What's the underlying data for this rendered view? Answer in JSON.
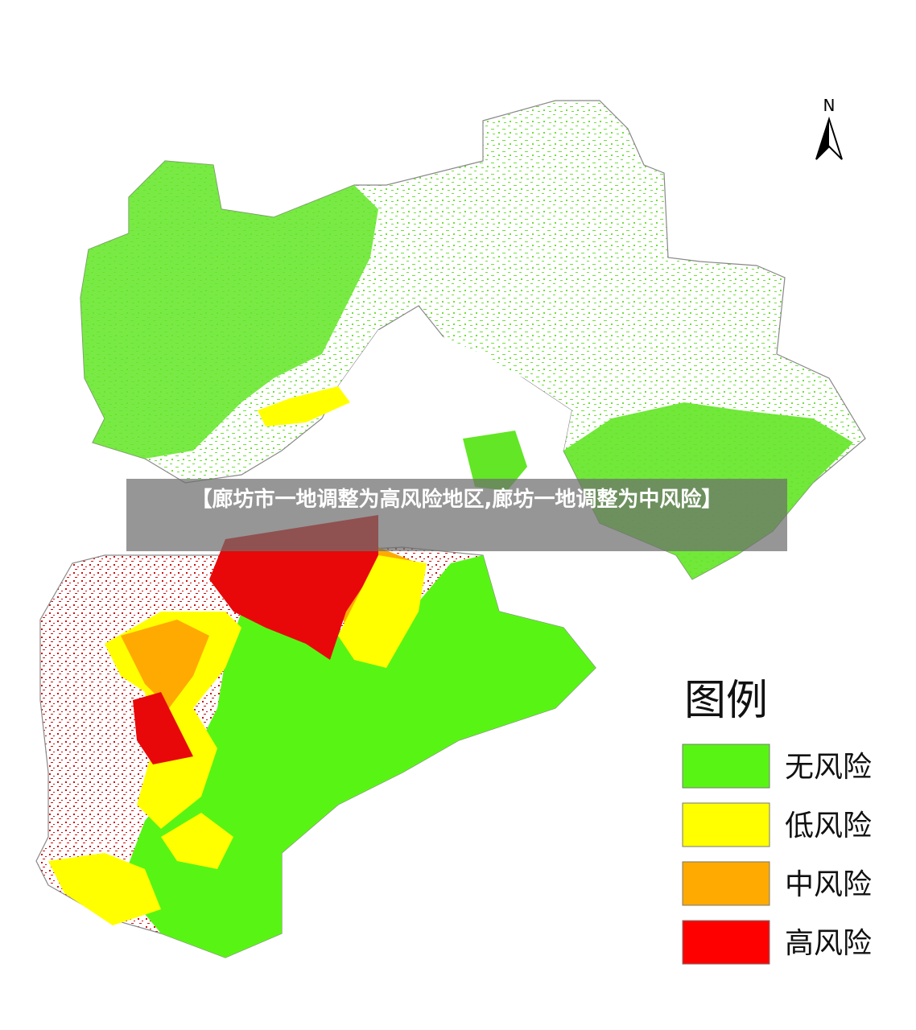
{
  "caption": "【廊坊市一地调整为高风险地区,廊坊一地调整为中风险】",
  "north_label": "N",
  "legend": {
    "title": "图例",
    "items": [
      {
        "label": "无风险",
        "color": "#58f514"
      },
      {
        "label": "低风险",
        "color": "#ffff00"
      },
      {
        "label": "中风险",
        "color": "#ffaa00"
      },
      {
        "label": "高风险",
        "color": "#ff0000"
      }
    ]
  }
}
